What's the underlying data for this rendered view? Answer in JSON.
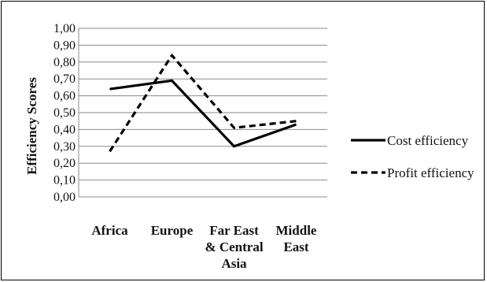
{
  "chart_data": {
    "type": "line",
    "title": "",
    "xlabel": "",
    "ylabel": "Efficiency Scores",
    "categories": [
      "Africa",
      "Europe",
      "Far East & Central Asia",
      "Middle East"
    ],
    "category_lines": [
      [
        "Africa"
      ],
      [
        "Europe"
      ],
      [
        "Far East",
        "& Central",
        "Asia"
      ],
      [
        "Middle",
        "East"
      ]
    ],
    "ylim": [
      0,
      1
    ],
    "yticks": [
      0,
      0.1,
      0.2,
      0.3,
      0.4,
      0.5,
      0.6,
      0.7,
      0.8,
      0.9,
      1.0
    ],
    "ytick_labels": [
      "0,00",
      "0,10",
      "0,20",
      "0,30",
      "0,40",
      "0,50",
      "0,60",
      "0,70",
      "0,80",
      "0,90",
      "1,00"
    ],
    "grid": true,
    "legend_position": "right",
    "series": [
      {
        "name": "Cost efficiency",
        "values": [
          0.64,
          0.69,
          0.3,
          0.43
        ],
        "style": "solid",
        "color": "#000000"
      },
      {
        "name": "Profit efficiency",
        "values": [
          0.27,
          0.84,
          0.41,
          0.45
        ],
        "style": "dashed",
        "color": "#000000"
      }
    ]
  }
}
